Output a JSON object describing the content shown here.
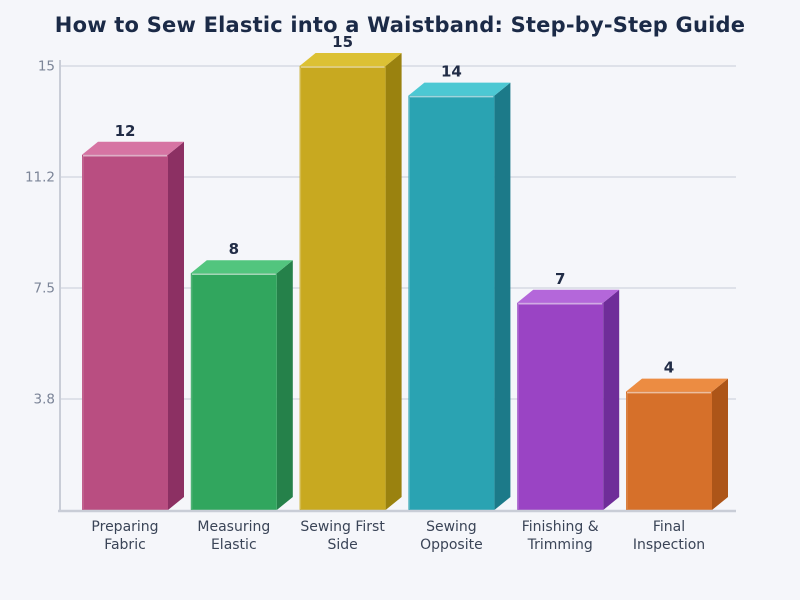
{
  "page": {
    "background": "#f5f6fa"
  },
  "chart_data": {
    "type": "bar",
    "title": "How to Sew Elastic into a Waistband: Step-by-Step Guide",
    "categories": [
      "Preparing Fabric",
      "Measuring Elastic",
      "Sewing First Side",
      "Sewing Opposite",
      "Finishing & Trimming",
      "Final Inspection"
    ],
    "category_lines": [
      [
        "Preparing",
        "Fabric"
      ],
      [
        "Measuring",
        "Elastic"
      ],
      [
        "Sewing First",
        "Side"
      ],
      [
        "Sewing",
        "Opposite"
      ],
      [
        "Finishing &",
        "Trimming"
      ],
      [
        "Final",
        "Inspection"
      ]
    ],
    "values": [
      12,
      8,
      15,
      14,
      7,
      4
    ],
    "value_labels": [
      "12",
      "8",
      "15",
      "14",
      "7",
      "4"
    ],
    "ylim": [
      0,
      15
    ],
    "yticks": [
      {
        "value": 3.75,
        "label": "3.8"
      },
      {
        "value": 7.5,
        "label": "7.5"
      },
      {
        "value": 11.25,
        "label": "11.2"
      },
      {
        "value": 15,
        "label": "15"
      }
    ],
    "grid": true,
    "legend": false,
    "xlabel": "",
    "ylabel": "",
    "bar_colors": [
      {
        "front": "#b94e81",
        "top": "#d674a3",
        "side": "#8c3063"
      },
      {
        "front": "#31a65e",
        "top": "#52c57e",
        "side": "#25814a"
      },
      {
        "front": "#c8a920",
        "top": "#dcc134",
        "side": "#9a820f"
      },
      {
        "front": "#2aa3b2",
        "top": "#4cc8d3",
        "side": "#1c7a89"
      },
      {
        "front": "#9a44c4",
        "top": "#b467da",
        "side": "#6f2d99"
      },
      {
        "front": "#d6702a",
        "top": "#ec8c42",
        "side": "#ad5518"
      }
    ],
    "styles": {
      "background": "#f5f6fa",
      "title_color": "#1b2a47",
      "value_label_color": "#212c46",
      "tick_label_color": "#7c8598",
      "category_label_color": "#3a4457",
      "grid_color": "#dee1e9",
      "axis_color": "#c9cdd7",
      "edge_highlight": "rgba(255,255,255,0.55)"
    }
  }
}
